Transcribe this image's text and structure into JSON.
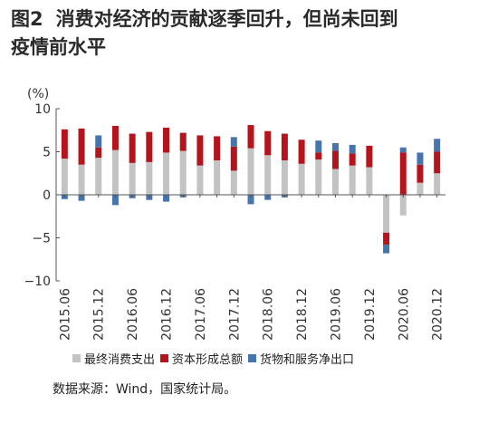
{
  "title": {
    "fig_no": "图2",
    "line1": "消费对经济的贡献逐季回升，但尚未回到",
    "line2": "疫情前水平"
  },
  "source": "数据来源：Wind，国家统计局。",
  "colors": {
    "consumption": "#c3c3c3",
    "capital": "#b5141d",
    "net_export": "#4674ad",
    "axis": "#555555"
  },
  "chart_data": {
    "type": "bar",
    "stacked": true,
    "unit_label": "(%)",
    "ylim": [
      -10,
      10
    ],
    "yticks": [
      "10",
      "5",
      "0",
      "−5",
      "−10"
    ],
    "ytick_values": [
      10,
      5,
      0,
      -5,
      -10
    ],
    "categories": [
      "2015.06",
      "2015.09",
      "2015.12",
      "2016.03",
      "2016.06",
      "2016.09",
      "2016.12",
      "2017.03",
      "2017.06",
      "2017.09",
      "2017.12",
      "2018.03",
      "2018.06",
      "2018.09",
      "2018.12",
      "2019.03",
      "2019.06",
      "2019.09",
      "2019.12",
      "2020.03",
      "2020.06",
      "2020.09",
      "2020.12"
    ],
    "xtick_labels": [
      "2015.06",
      "2015.12",
      "2016.06",
      "2016.12",
      "2017.06",
      "2017.12",
      "2018.06",
      "2018.12",
      "2019.06",
      "2019.12",
      "2020.06",
      "2020.12"
    ],
    "series": [
      {
        "name": "最终消费支出",
        "color": "#c3c3c3",
        "values": [
          4.2,
          3.5,
          4.3,
          5.2,
          3.7,
          3.8,
          4.9,
          5.1,
          3.4,
          4.0,
          2.8,
          5.4,
          4.6,
          4.0,
          3.6,
          4.1,
          3.0,
          3.4,
          3.2,
          -4.4,
          -2.4,
          1.4,
          2.5
        ]
      },
      {
        "name": "资本形成总额",
        "color": "#b5141d",
        "values": [
          3.4,
          4.2,
          1.2,
          2.8,
          3.4,
          3.5,
          2.9,
          2.1,
          3.5,
          2.8,
          2.8,
          2.7,
          2.8,
          3.1,
          2.8,
          0.8,
          2.1,
          1.4,
          2.5,
          -1.4,
          4.9,
          2.1,
          2.5
        ]
      },
      {
        "name": "货物和服务净出口",
        "color": "#4674ad",
        "values": [
          -0.5,
          -0.7,
          1.4,
          -1.2,
          -0.4,
          -0.6,
          -0.8,
          -0.3,
          0.0,
          0.0,
          1.1,
          -1.1,
          -0.6,
          -0.3,
          0.0,
          1.4,
          0.9,
          1.0,
          0.0,
          -1.0,
          0.6,
          1.4,
          1.5
        ]
      }
    ]
  }
}
